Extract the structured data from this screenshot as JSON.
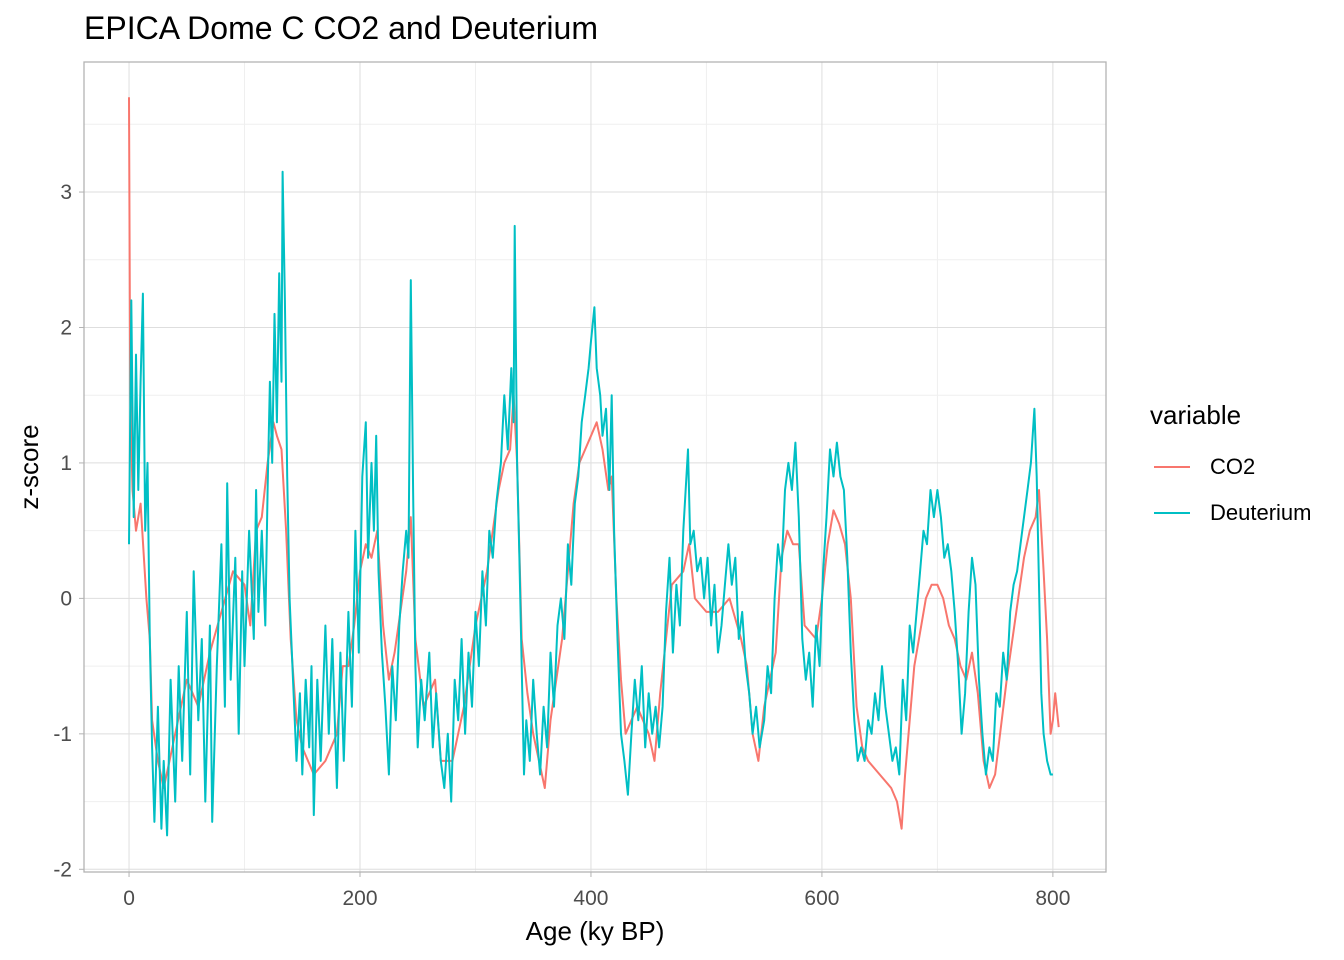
{
  "chart_data": {
    "type": "line",
    "title": "EPICA Dome C CO2 and Deuterium",
    "xlabel": "Age (ky BP)",
    "ylabel": "z-score",
    "xlim": [
      -39,
      846
    ],
    "ylim": [
      -2.02,
      3.96
    ],
    "xticks": [
      0,
      200,
      400,
      600,
      800
    ],
    "yticks": [
      -2,
      -1,
      0,
      1,
      2,
      3
    ],
    "grid": true,
    "legend": {
      "title": "variable",
      "placement": "right"
    },
    "series": [
      {
        "name": "CO2",
        "color": "#F8766D",
        "x": [
          0,
          1,
          3,
          6,
          10,
          15,
          18,
          20,
          25,
          30,
          35,
          40,
          50,
          60,
          70,
          80,
          90,
          100,
          105,
          110,
          115,
          120,
          125,
          128,
          132,
          136,
          140,
          145,
          150,
          160,
          170,
          180,
          185,
          190,
          195,
          200,
          205,
          210,
          215,
          220,
          225,
          230,
          235,
          240,
          244,
          248,
          255,
          265,
          270,
          280,
          290,
          300,
          305,
          310,
          315,
          320,
          325,
          330,
          333,
          336,
          340,
          345,
          350,
          355,
          360,
          365,
          370,
          375,
          380,
          385,
          390,
          395,
          400,
          405,
          410,
          415,
          418,
          422,
          426,
          430,
          440,
          450,
          455,
          460,
          465,
          470,
          480,
          485,
          490,
          500,
          510,
          520,
          530,
          535,
          540,
          545,
          550,
          560,
          565,
          570,
          575,
          580,
          585,
          595,
          600,
          605,
          610,
          615,
          620,
          625,
          630,
          635,
          640,
          650,
          660,
          665,
          669,
          672,
          680,
          690,
          695,
          700,
          705,
          710,
          715,
          720,
          725,
          730,
          735,
          740,
          745,
          750,
          760,
          770,
          775,
          780,
          785,
          788,
          792,
          795,
          798,
          800,
          802,
          805
        ],
        "y": [
          3.7,
          1.5,
          0.8,
          0.5,
          0.7,
          0.0,
          -0.3,
          -0.9,
          -1.2,
          -1.4,
          -1.2,
          -1.0,
          -0.6,
          -0.8,
          -0.4,
          -0.1,
          0.2,
          0.1,
          -0.2,
          0.5,
          0.6,
          1.0,
          1.3,
          1.2,
          1.1,
          0.5,
          -0.3,
          -0.9,
          -1.1,
          -1.3,
          -1.2,
          -1.0,
          -0.5,
          -0.5,
          -0.2,
          0.2,
          0.4,
          0.3,
          0.5,
          -0.2,
          -0.6,
          -0.4,
          -0.1,
          0.2,
          0.6,
          -0.3,
          -0.8,
          -0.6,
          -1.2,
          -1.2,
          -0.8,
          -0.2,
          0.0,
          0.2,
          0.5,
          0.8,
          1.0,
          1.1,
          1.5,
          1.0,
          -0.3,
          -0.7,
          -1.0,
          -1.2,
          -1.4,
          -0.9,
          -0.6,
          -0.3,
          0.2,
          0.7,
          1.0,
          1.1,
          1.2,
          1.3,
          1.1,
          0.8,
          0.9,
          0.0,
          -0.6,
          -1.0,
          -0.8,
          -1.0,
          -1.2,
          -0.7,
          -0.3,
          0.1,
          0.2,
          0.4,
          0.0,
          -0.1,
          -0.1,
          0.0,
          -0.3,
          -0.5,
          -1.0,
          -1.2,
          -0.8,
          -0.4,
          0.3,
          0.5,
          0.4,
          0.4,
          -0.2,
          -0.3,
          0.0,
          0.4,
          0.65,
          0.55,
          0.4,
          0.0,
          -0.8,
          -1.1,
          -1.2,
          -1.3,
          -1.4,
          -1.5,
          -1.7,
          -1.3,
          -0.5,
          0.0,
          0.1,
          0.1,
          0.0,
          -0.2,
          -0.3,
          -0.5,
          -0.6,
          -0.4,
          -0.7,
          -1.2,
          -1.4,
          -1.3,
          -0.6,
          0.0,
          0.3,
          0.5,
          0.6,
          0.8,
          0.2,
          -0.3,
          -1.0,
          -0.9,
          -0.7,
          -0.95
        ]
      },
      {
        "name": "Deuterium",
        "color": "#00BFC4",
        "x": [
          0,
          2,
          4,
          6,
          8,
          10,
          12,
          14,
          16,
          18,
          20,
          22,
          25,
          28,
          30,
          33,
          36,
          40,
          43,
          46,
          50,
          53,
          56,
          60,
          63,
          66,
          70,
          72,
          76,
          80,
          83,
          85,
          88,
          92,
          95,
          98,
          100,
          104,
          108,
          110,
          112,
          115,
          118,
          120,
          122,
          124,
          126,
          128,
          130,
          132,
          133,
          135,
          137,
          139,
          142,
          145,
          148,
          150,
          153,
          156,
          158,
          160,
          163,
          166,
          170,
          173,
          176,
          180,
          183,
          186,
          190,
          193,
          196,
          199,
          202,
          205,
          207,
          210,
          212,
          214,
          216,
          219,
          222,
          225,
          228,
          231,
          234,
          237,
          240,
          242,
          244,
          246,
          248,
          250,
          253,
          256,
          260,
          263,
          266,
          270,
          273,
          276,
          279,
          282,
          285,
          288,
          291,
          294,
          297,
          300,
          303,
          306,
          309,
          312,
          315,
          318,
          322,
          325,
          328,
          331,
          333,
          334,
          336,
          338,
          340,
          342,
          344,
          347,
          350,
          353,
          356,
          359,
          362,
          365,
          368,
          371,
          374,
          377,
          380,
          383,
          386,
          389,
          392,
          395,
          398,
          400,
          403,
          405,
          408,
          410,
          413,
          416,
          418,
          420,
          423,
          426,
          429,
          432,
          435,
          438,
          441,
          444,
          447,
          450,
          453,
          456,
          459,
          462,
          465,
          468,
          471,
          474,
          477,
          480,
          484,
          486,
          489,
          492,
          495,
          498,
          501,
          504,
          507,
          510,
          513,
          516,
          519,
          522,
          525,
          528,
          531,
          534,
          537,
          540,
          543,
          546,
          550,
          553,
          556,
          559,
          562,
          565,
          568,
          571,
          574,
          577,
          580,
          583,
          586,
          589,
          592,
          595,
          598,
          601,
          604,
          607,
          610,
          613,
          616,
          619,
          622,
          625,
          628,
          631,
          634,
          637,
          640,
          643,
          646,
          649,
          652,
          655,
          658,
          661,
          664,
          667,
          670,
          673,
          676,
          679,
          682,
          685,
          688,
          691,
          694,
          697,
          700,
          703,
          706,
          709,
          712,
          715,
          718,
          721,
          724,
          727,
          730,
          733,
          736,
          739,
          742,
          745,
          748,
          751,
          754,
          757,
          760,
          763,
          766,
          769,
          772,
          775,
          778,
          781,
          784,
          786,
          788,
          790,
          792,
          795,
          798,
          800
        ],
        "y": [
          0.4,
          2.2,
          0.6,
          1.8,
          0.8,
          1.6,
          2.25,
          0.5,
          1.0,
          -0.3,
          -1.1,
          -1.65,
          -0.8,
          -1.7,
          -1.2,
          -1.75,
          -0.6,
          -1.5,
          -0.5,
          -1.2,
          -0.1,
          -1.3,
          0.2,
          -0.9,
          -0.3,
          -1.5,
          -0.2,
          -1.65,
          -0.5,
          0.4,
          -0.8,
          0.85,
          -0.6,
          0.3,
          -1.0,
          0.2,
          -0.5,
          0.5,
          -0.3,
          0.8,
          -0.1,
          0.5,
          -0.2,
          0.8,
          1.6,
          1.0,
          2.1,
          1.3,
          2.4,
          1.6,
          3.15,
          2.2,
          0.9,
          0.0,
          -0.6,
          -1.2,
          -0.7,
          -1.3,
          -0.6,
          -1.1,
          -0.5,
          -1.6,
          -0.6,
          -1.2,
          -0.2,
          -1.0,
          -0.3,
          -1.4,
          -0.4,
          -1.2,
          -0.1,
          -0.8,
          0.5,
          -0.4,
          0.9,
          1.3,
          0.3,
          1.0,
          0.5,
          1.2,
          0.2,
          -0.4,
          -0.8,
          -1.3,
          -0.5,
          -0.9,
          -0.2,
          0.2,
          0.5,
          0.3,
          2.35,
          0.8,
          -0.5,
          -1.1,
          -0.6,
          -0.9,
          -0.4,
          -1.1,
          -0.7,
          -1.2,
          -1.4,
          -1.0,
          -1.5,
          -0.6,
          -0.9,
          -0.3,
          -1.0,
          -0.4,
          -0.8,
          -0.1,
          -0.5,
          0.2,
          -0.2,
          0.5,
          0.3,
          0.7,
          1.0,
          1.5,
          1.1,
          1.7,
          1.3,
          2.75,
          1.0,
          0.3,
          -0.5,
          -1.3,
          -0.9,
          -1.2,
          -0.6,
          -1.0,
          -1.3,
          -0.8,
          -1.1,
          -0.4,
          -0.8,
          -0.2,
          0.0,
          -0.3,
          0.4,
          0.1,
          0.7,
          0.9,
          1.3,
          1.5,
          1.7,
          1.9,
          2.15,
          1.7,
          1.5,
          1.2,
          1.4,
          0.8,
          1.5,
          0.5,
          -0.3,
          -1.0,
          -1.2,
          -1.45,
          -1.0,
          -0.6,
          -0.9,
          -0.5,
          -1.1,
          -0.7,
          -1.0,
          -0.8,
          -1.1,
          -0.8,
          -0.1,
          0.3,
          -0.4,
          0.1,
          -0.2,
          0.5,
          1.1,
          0.4,
          0.5,
          0.2,
          0.3,
          0.0,
          0.3,
          -0.2,
          0.1,
          -0.4,
          -0.2,
          0.1,
          0.4,
          0.1,
          0.3,
          -0.3,
          -0.1,
          -0.5,
          -0.7,
          -1.0,
          -0.8,
          -1.1,
          -0.9,
          -0.5,
          -0.7,
          0.0,
          0.4,
          0.2,
          0.8,
          1.0,
          0.8,
          1.15,
          0.6,
          -0.3,
          -0.6,
          -0.4,
          -0.8,
          -0.2,
          -0.5,
          0.2,
          0.6,
          1.1,
          0.9,
          1.15,
          0.9,
          0.8,
          0.3,
          -0.4,
          -0.9,
          -1.2,
          -1.1,
          -1.2,
          -0.9,
          -1.0,
          -0.7,
          -0.9,
          -0.5,
          -0.8,
          -1.0,
          -1.2,
          -1.1,
          -1.3,
          -0.6,
          -0.9,
          -0.2,
          -0.4,
          -0.1,
          0.2,
          0.5,
          0.4,
          0.8,
          0.6,
          0.8,
          0.6,
          0.3,
          0.4,
          0.2,
          -0.1,
          -0.5,
          -1.0,
          -0.7,
          -0.1,
          0.3,
          0.1,
          -0.6,
          -1.0,
          -1.3,
          -1.1,
          -1.2,
          -0.7,
          -0.8,
          -0.4,
          -0.6,
          -0.1,
          0.1,
          0.2,
          0.4,
          0.6,
          0.8,
          1.0,
          1.4,
          0.9,
          0.1,
          -0.7,
          -1.0,
          -1.2,
          -1.3,
          -1.3
        ]
      }
    ]
  }
}
